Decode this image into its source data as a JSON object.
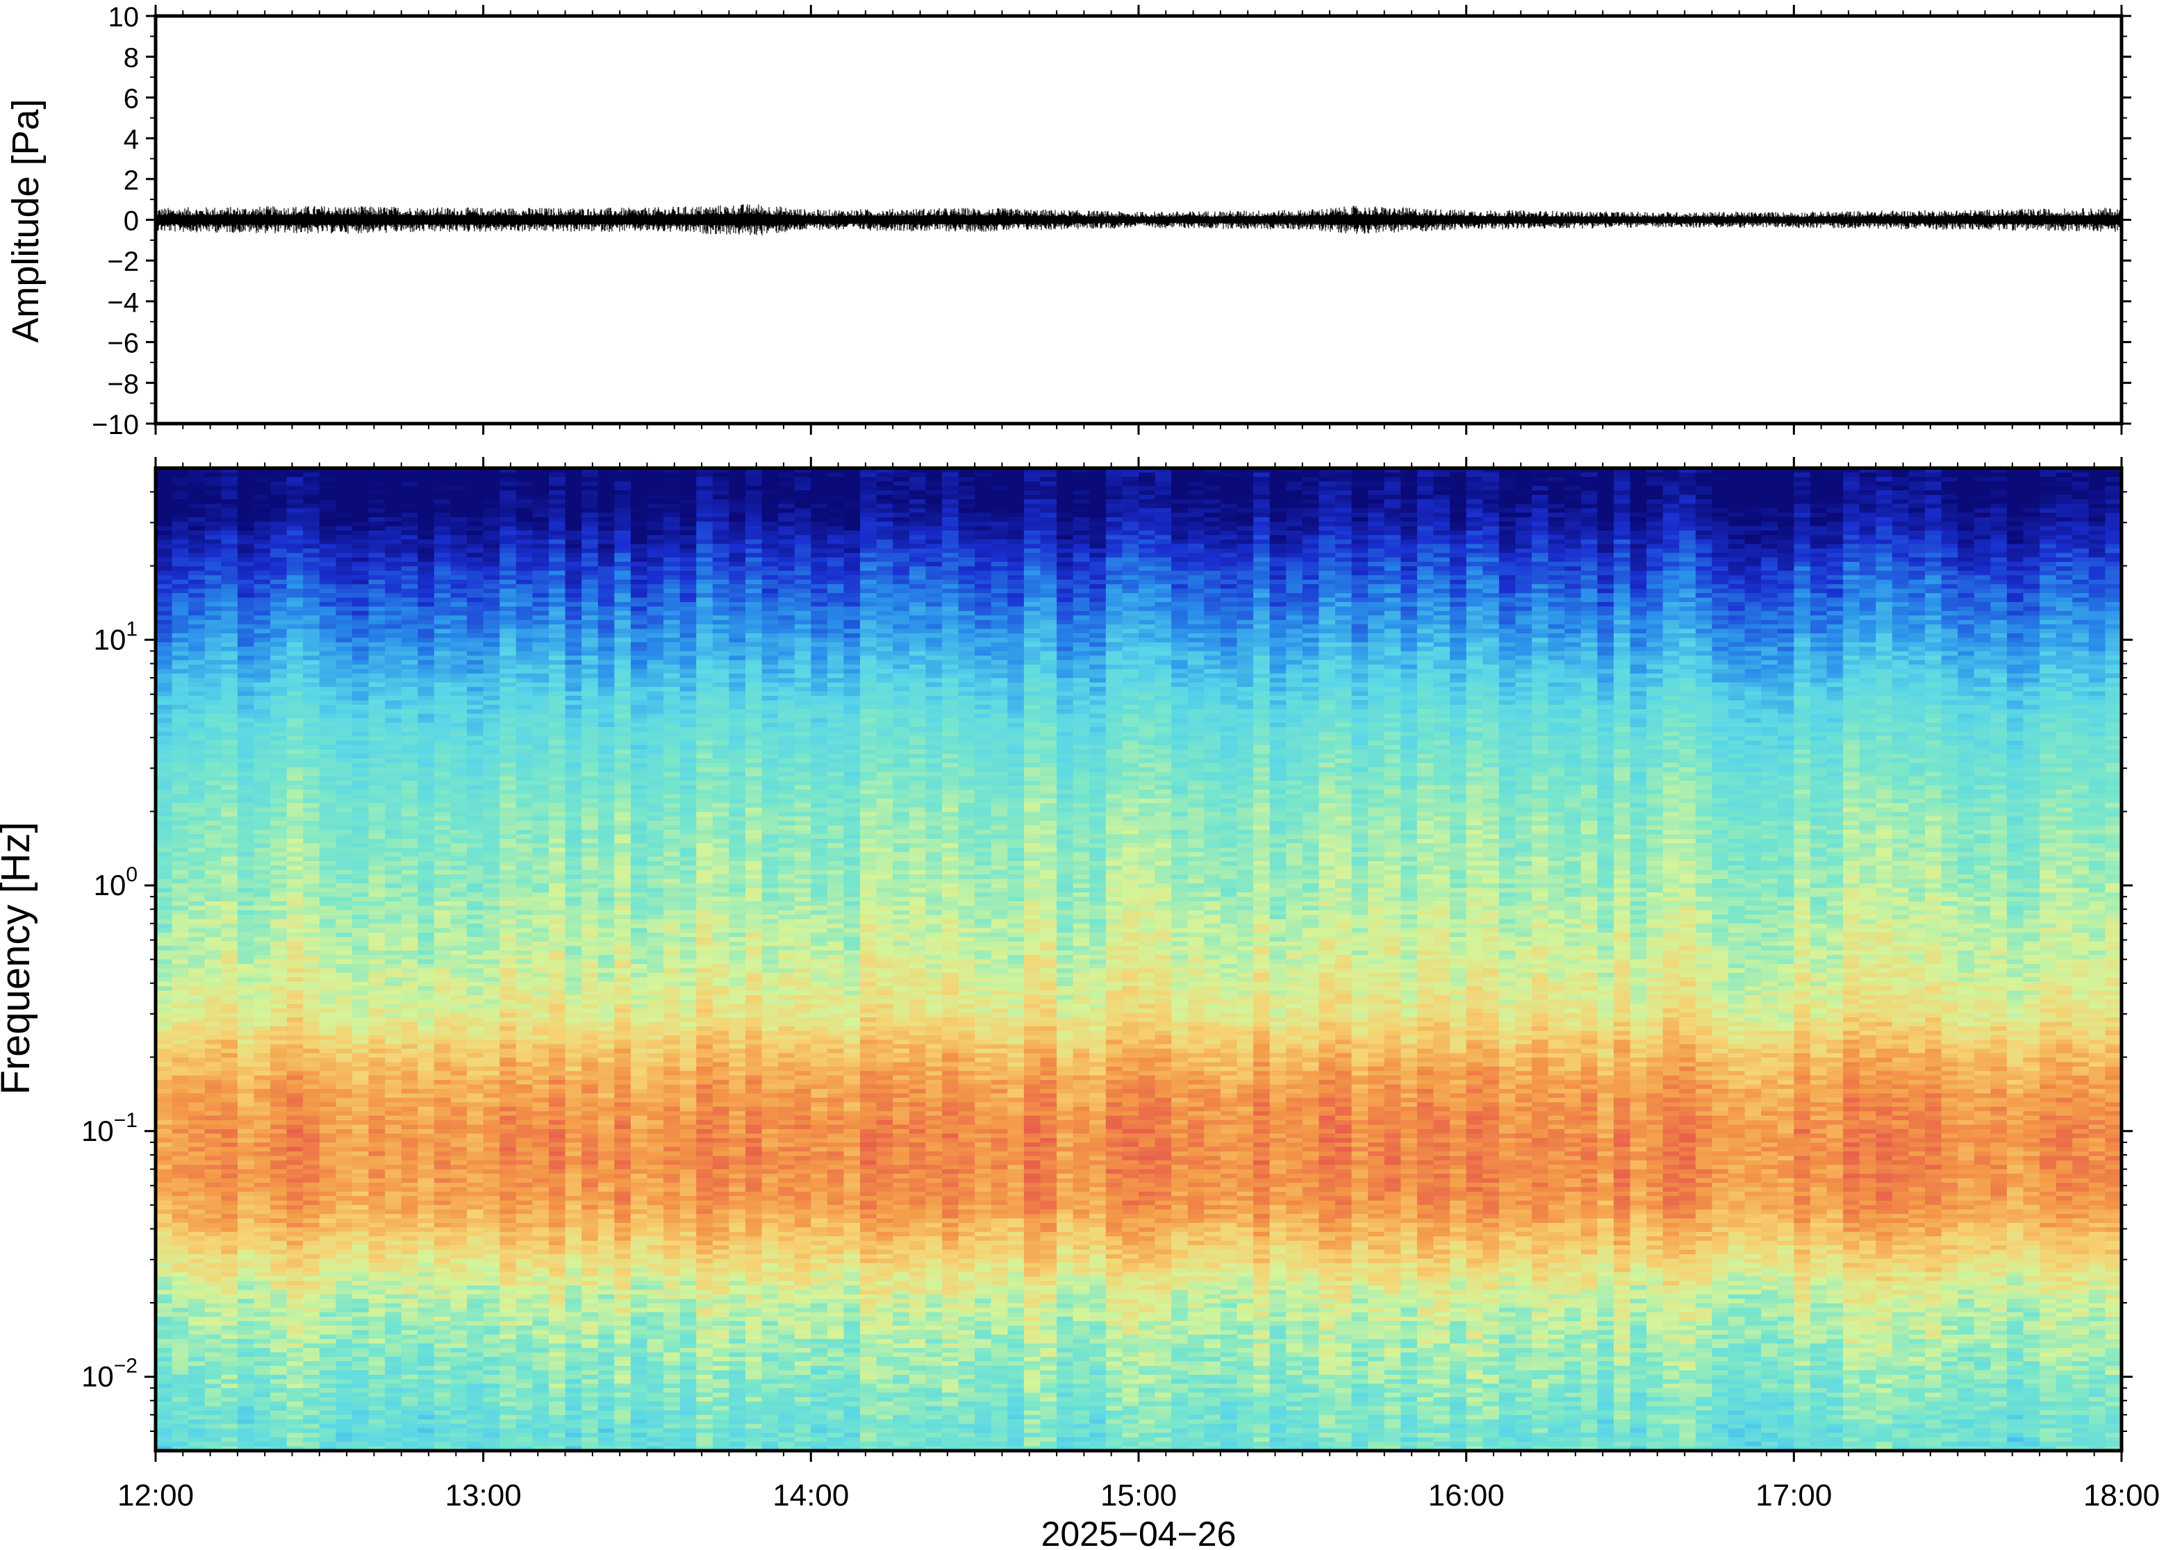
{
  "chart_data": [
    {
      "type": "line",
      "panel": "waveform",
      "ylabel": "Amplitude [Pa]",
      "ylim": [
        -10,
        10
      ],
      "yticks": [
        10,
        8,
        6,
        4,
        2,
        0,
        -2,
        -4,
        -6,
        -8,
        -10
      ],
      "ytick_labels": [
        "10",
        "8",
        "6",
        "4",
        "2",
        "0",
        "−2",
        "−4",
        "−6",
        "−8",
        "−10"
      ],
      "xlim": [
        "2025-04-26 12:00",
        "2025-04-26 18:00"
      ],
      "series": [
        {
          "color": "#000000",
          "baseline": 0,
          "envelope_x": [
            "12:00",
            "12:30",
            "13:00",
            "13:30",
            "13:50",
            "14:00",
            "14:30",
            "15:00",
            "15:30",
            "15:40",
            "16:00",
            "16:30",
            "17:00",
            "17:30",
            "18:00"
          ],
          "envelope_peak": [
            0.6,
            0.7,
            0.6,
            0.6,
            0.8,
            0.5,
            0.6,
            0.4,
            0.5,
            0.7,
            0.5,
            0.4,
            0.4,
            0.5,
            0.6
          ]
        }
      ]
    },
    {
      "type": "heatmap",
      "panel": "spectrogram",
      "ylabel": "Frequency [Hz]",
      "yscale": "log",
      "ylim": [
        0.005,
        50
      ],
      "yticks": [
        0.01,
        0.1,
        1,
        10
      ],
      "ytick_labels": [
        {
          "base": "10",
          "exp": "−2"
        },
        {
          "base": "10",
          "exp": "−1"
        },
        {
          "base": "10",
          "exp": "0"
        },
        {
          "base": "10",
          "exp": "1"
        }
      ],
      "xlim": [
        "2025-04-26 12:00",
        "2025-04-26 18:00"
      ],
      "colormap": "jet-like",
      "colors": [
        "#0a0a78",
        "#1a2fd0",
        "#2a8fea",
        "#58d5e8",
        "#78e6cc",
        "#d4f49a",
        "#f6d272",
        "#f49a48",
        "#e8604a"
      ],
      "spectral_profile": {
        "freq_hz": [
          40,
          30,
          20,
          10,
          5,
          2,
          1,
          0.5,
          0.3,
          0.2,
          0.15,
          0.1,
          0.07,
          0.05,
          0.03,
          0.02,
          0.01,
          0.006
        ],
        "level": [
          0.0,
          0.05,
          0.15,
          0.28,
          0.42,
          0.52,
          0.56,
          0.62,
          0.68,
          0.8,
          0.86,
          0.9,
          0.9,
          0.87,
          0.72,
          0.6,
          0.52,
          0.46
        ]
      }
    }
  ],
  "x_axis": {
    "ticks": [
      "12:00",
      "13:00",
      "14:00",
      "15:00",
      "16:00",
      "17:00",
      "18:00"
    ],
    "label": "2025−04−26"
  }
}
